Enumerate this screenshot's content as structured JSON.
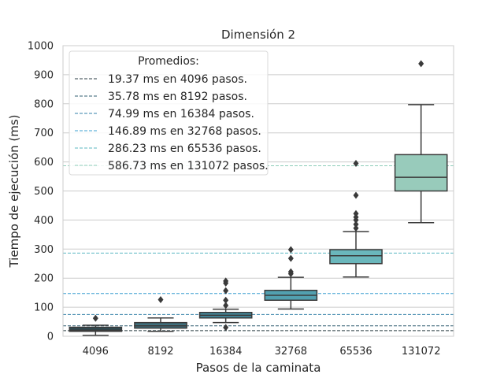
{
  "chart_data": {
    "type": "box",
    "title": "Dimensión 2",
    "xlabel": "Pasos de la caminata",
    "ylabel": "Tiempo de ejecución (ms)",
    "ylim": [
      0,
      1000
    ],
    "yticks": [
      0,
      100,
      200,
      300,
      400,
      500,
      600,
      700,
      800,
      900,
      1000
    ],
    "grid": true,
    "categories": [
      "4096",
      "8192",
      "16384",
      "32768",
      "65536",
      "131072"
    ],
    "boxes": [
      {
        "category": "4096",
        "whisker_low": 3,
        "q1": 17,
        "median": 21,
        "q3": 31,
        "whisker_high": 38,
        "outliers": [
          62
        ],
        "color": "#2f4a52"
      },
      {
        "category": "8192",
        "whisker_low": 17,
        "q1": 28,
        "median": 36,
        "q3": 47,
        "whisker_high": 63,
        "outliers": [
          126
        ],
        "color": "#3f6f7c"
      },
      {
        "category": "16384",
        "whisker_low": 47,
        "q1": 63,
        "median": 72,
        "q3": 82,
        "whisker_high": 93,
        "outliers": [
          30,
          106,
          124,
          157,
          183,
          190
        ],
        "color": "#43899b"
      },
      {
        "category": "32768",
        "whisker_low": 94,
        "q1": 124,
        "median": 141,
        "q3": 158,
        "whisker_high": 203,
        "outliers": [
          215,
          222,
          268,
          298
        ],
        "color": "#52a0b0"
      },
      {
        "category": "65536",
        "whisker_low": 204,
        "q1": 250,
        "median": 277,
        "q3": 298,
        "whisker_high": 360,
        "outliers": [
          372,
          385,
          400,
          410,
          422,
          485,
          595
        ],
        "color": "#6ab7bc"
      },
      {
        "category": "131072",
        "whisker_low": 391,
        "q1": 500,
        "median": 547,
        "q3": 625,
        "whisker_high": 797,
        "outliers": [
          938
        ],
        "color": "#98cbbb"
      }
    ],
    "reference_lines": [
      {
        "value": 19.37,
        "color": "#2b3d44"
      },
      {
        "value": 35.78,
        "color": "#305f70"
      },
      {
        "value": 74.99,
        "color": "#3380a8"
      },
      {
        "value": 146.89,
        "color": "#3ea0d1"
      },
      {
        "value": 286.23,
        "color": "#5bb7c2"
      },
      {
        "value": 586.73,
        "color": "#8ccdb8"
      }
    ],
    "legend": {
      "title": "Promedios:",
      "placement": "top-left",
      "entries": [
        "19.37 ms en 4096 pasos.",
        "35.78 ms en 8192 pasos.",
        "74.99 ms en 16384 pasos.",
        "146.89 ms en 32768 pasos.",
        "286.23 ms en 65536 pasos.",
        "586.73 ms en 131072 pasos."
      ]
    }
  }
}
